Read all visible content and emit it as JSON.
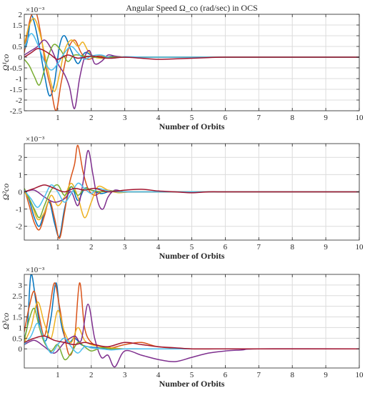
{
  "chart_data": [
    {
      "type": "line",
      "title": "Angular Speed Ω_co (rad/sec) in OCS",
      "xlabel": "Number of Orbits",
      "ylabel": "Ω¹co",
      "y_exponent": "×10⁻³",
      "xlim": [
        0,
        10
      ],
      "ylim": [
        -2.5,
        2.0
      ],
      "xticks": [
        "1",
        "2",
        "3",
        "4",
        "5",
        "6",
        "7",
        "8",
        "9",
        "10"
      ],
      "yticks": [
        "-2.5",
        "-2",
        "-1.5",
        "-1",
        "-0.5",
        "0",
        "0.5",
        "1",
        "1.5",
        "2"
      ],
      "grid": true,
      "series": [
        {
          "color": "#0072BD",
          "x": [
            0,
            0.1,
            0.2,
            0.3,
            0.45,
            0.6,
            0.75,
            0.9,
            1.05,
            1.2,
            1.4,
            1.6,
            1.8,
            2.0,
            2.3,
            2.6,
            3.0,
            3.5,
            4,
            5,
            6,
            10
          ],
          "values": [
            0.3,
            0.8,
            1.9,
            1.6,
            0.5,
            -0.8,
            -1.8,
            -1.2,
            0.5,
            1.0,
            0.3,
            -0.3,
            0.2,
            0.1,
            -0.05,
            0.03,
            0,
            0,
            0,
            0,
            0,
            0
          ]
        },
        {
          "color": "#D95319",
          "x": [
            0,
            0.1,
            0.2,
            0.35,
            0.5,
            0.65,
            0.8,
            0.95,
            1.1,
            1.3,
            1.5,
            1.7,
            1.9,
            2.2,
            2.5,
            3.0,
            3.5,
            4,
            5,
            6,
            10
          ],
          "values": [
            0.2,
            1.2,
            1.9,
            2.1,
            1.0,
            -0.5,
            -1.5,
            -2.5,
            -1.2,
            0.3,
            0.8,
            0.2,
            -0.1,
            0.05,
            0,
            0,
            0,
            0,
            0,
            0,
            0
          ]
        },
        {
          "color": "#EDB120",
          "x": [
            0,
            0.15,
            0.3,
            0.45,
            0.6,
            0.75,
            0.9,
            1.05,
            1.2,
            1.4,
            1.6,
            1.75,
            1.9,
            2.1,
            2.4,
            2.8,
            3.2,
            4,
            5,
            6,
            10
          ],
          "values": [
            0.6,
            1.5,
            1.8,
            1.2,
            0.2,
            -0.9,
            -1.6,
            -0.8,
            0.3,
            0.8,
            0.5,
            0.7,
            0.3,
            0.0,
            -0.05,
            0.02,
            0,
            0,
            0,
            0,
            0
          ]
        },
        {
          "color": "#7E2F8E",
          "x": [
            0,
            0.2,
            0.4,
            0.6,
            0.8,
            1.0,
            1.2,
            1.35,
            1.5,
            1.65,
            1.8,
            1.95,
            2.1,
            2.3,
            2.5,
            2.7,
            3.0,
            3.5,
            4,
            5,
            6,
            10
          ],
          "values": [
            0.1,
            0.3,
            0.5,
            0.8,
            0.4,
            -0.3,
            -0.8,
            -1.4,
            -2.4,
            -1.0,
            0.0,
            0.3,
            -0.3,
            -0.2,
            0.1,
            0.05,
            0,
            0,
            0,
            0,
            0,
            0
          ]
        },
        {
          "color": "#77AC30",
          "x": [
            0,
            0.15,
            0.3,
            0.45,
            0.6,
            0.75,
            0.9,
            1.1,
            1.3,
            1.5,
            1.8,
            2.1,
            2.5,
            3.0,
            4,
            5,
            6,
            10
          ],
          "values": [
            -0.1,
            -0.4,
            -0.9,
            -1.3,
            -0.6,
            0.2,
            0.6,
            0.3,
            -0.2,
            0.1,
            0.05,
            0,
            0,
            0,
            0,
            0,
            0,
            0
          ]
        },
        {
          "color": "#4DBEEE",
          "x": [
            0,
            0.2,
            0.4,
            0.6,
            0.8,
            1.0,
            1.2,
            1.4,
            1.6,
            1.8,
            2.0,
            2.3,
            2.6,
            3.0,
            3.5,
            4,
            5,
            6,
            10
          ],
          "values": [
            0.4,
            1.1,
            0.6,
            -0.2,
            -0.6,
            -0.3,
            0.2,
            0.5,
            0.2,
            -0.1,
            0.05,
            0.1,
            -0.05,
            0.02,
            0,
            0,
            0,
            0,
            0
          ]
        },
        {
          "color": "#A2142F",
          "x": [
            0,
            0.2,
            0.4,
            0.6,
            0.8,
            1.0,
            1.3,
            1.6,
            2.0,
            2.5,
            3.0,
            3.5,
            4.0,
            4.5,
            5.0,
            5.5,
            6.0,
            7,
            10
          ],
          "values": [
            0,
            0.2,
            0.4,
            0.3,
            0.1,
            -0.1,
            0.1,
            -0.05,
            0.05,
            -0.05,
            0.0,
            -0.05,
            -0.1,
            -0.08,
            -0.05,
            -0.02,
            0,
            0,
            0
          ]
        }
      ]
    },
    {
      "type": "line",
      "xlabel": "Number of Orbits",
      "ylabel": "Ω²co",
      "y_exponent": "×10⁻³",
      "xlim": [
        0,
        10
      ],
      "ylim": [
        -2.8,
        2.8
      ],
      "xticks": [
        "1",
        "2",
        "3",
        "4",
        "5",
        "6",
        "7",
        "8",
        "9",
        "10"
      ],
      "yticks": [
        "-2",
        "-1",
        "0",
        "1",
        "2"
      ],
      "grid": true,
      "series": [
        {
          "color": "#0072BD",
          "x": [
            0,
            0.15,
            0.3,
            0.45,
            0.6,
            0.75,
            0.9,
            1.05,
            1.2,
            1.4,
            1.6,
            1.8,
            2.0,
            2.3,
            2.6,
            3.0,
            3.5,
            4,
            5,
            6,
            10
          ],
          "values": [
            0.1,
            -0.5,
            -1.5,
            -2.0,
            -1.2,
            -0.6,
            -1.8,
            -2.6,
            -1.0,
            0.3,
            -0.5,
            0.2,
            0.1,
            -0.1,
            0.05,
            0,
            0,
            0,
            0,
            0,
            0
          ]
        },
        {
          "color": "#D95319",
          "x": [
            0,
            0.15,
            0.3,
            0.45,
            0.6,
            0.75,
            0.9,
            1.05,
            1.2,
            1.35,
            1.5,
            1.6,
            1.75,
            1.9,
            2.1,
            2.4,
            2.8,
            3.2,
            4,
            5,
            6,
            10
          ],
          "values": [
            0.2,
            -0.8,
            -1.8,
            -2.2,
            -1.4,
            -0.5,
            -1.5,
            -2.7,
            -1.2,
            0.5,
            1.6,
            2.7,
            1.2,
            0.2,
            -0.2,
            0.1,
            0,
            0,
            0,
            0,
            0,
            0
          ]
        },
        {
          "color": "#EDB120",
          "x": [
            0,
            0.2,
            0.4,
            0.6,
            0.8,
            1.0,
            1.2,
            1.4,
            1.6,
            1.8,
            2.0,
            2.2,
            2.5,
            2.8,
            3.2,
            4,
            5,
            6,
            10
          ],
          "values": [
            0.0,
            -0.6,
            -1.6,
            -1.2,
            -0.2,
            -0.8,
            -0.3,
            0.5,
            -0.3,
            -1.5,
            -0.6,
            0.3,
            0.1,
            -0.05,
            0,
            0,
            0,
            0,
            0
          ]
        },
        {
          "color": "#7E2F8E",
          "x": [
            0,
            0.3,
            0.6,
            0.9,
            1.2,
            1.4,
            1.6,
            1.75,
            1.9,
            2.05,
            2.2,
            2.35,
            2.5,
            2.7,
            3.0,
            3.5,
            4,
            5,
            6,
            10
          ],
          "values": [
            0.0,
            0.1,
            -0.3,
            -0.6,
            -0.4,
            0.0,
            -0.8,
            0.5,
            2.4,
            1.0,
            -0.6,
            -1.0,
            -0.3,
            0.1,
            0,
            0,
            0,
            0,
            0,
            0
          ]
        },
        {
          "color": "#77AC30",
          "x": [
            0,
            0.15,
            0.3,
            0.45,
            0.6,
            0.8,
            1.0,
            1.2,
            1.4,
            1.6,
            1.8,
            2.0,
            2.3,
            2.6,
            3.0,
            3.5,
            4,
            5,
            6,
            10
          ],
          "values": [
            0.2,
            -0.4,
            -1.0,
            -1.5,
            -0.8,
            0.1,
            0.4,
            -0.2,
            0.3,
            -0.2,
            0.2,
            0.1,
            0.0,
            0.05,
            0,
            0,
            0,
            0,
            0,
            0
          ]
        },
        {
          "color": "#4DBEEE",
          "x": [
            0,
            0.2,
            0.4,
            0.6,
            0.8,
            1.0,
            1.2,
            1.4,
            1.6,
            1.8,
            2.0,
            2.2,
            2.5,
            2.8,
            3.2,
            4,
            5,
            6,
            10
          ],
          "values": [
            0.1,
            -0.4,
            -0.9,
            -0.3,
            0.4,
            0.0,
            -0.6,
            -0.1,
            0.5,
            0.2,
            -0.1,
            0.2,
            0.05,
            0.0,
            0,
            0,
            0,
            0,
            0
          ]
        },
        {
          "color": "#A2142F",
          "x": [
            0,
            0.3,
            0.6,
            0.9,
            1.2,
            1.5,
            1.8,
            2.1,
            2.5,
            3.0,
            3.5,
            4.0,
            4.5,
            5.0,
            5.5,
            6.0,
            7,
            10
          ],
          "values": [
            0,
            0.2,
            0.4,
            0.2,
            0.0,
            0.2,
            0.1,
            0.2,
            0.0,
            0.1,
            0.15,
            0.05,
            0.0,
            -0.05,
            0,
            0,
            0,
            0
          ]
        }
      ]
    },
    {
      "type": "line",
      "xlabel": "Number of Orbits",
      "ylabel": "Ω³co",
      "y_exponent": "×10⁻³",
      "xlim": [
        0,
        10
      ],
      "ylim": [
        -0.9,
        3.5
      ],
      "xticks": [
        "1",
        "2",
        "3",
        "4",
        "5",
        "6",
        "7",
        "8",
        "9",
        "10"
      ],
      "yticks": [
        "0",
        "0.5",
        "1",
        "1.5",
        "2",
        "2.5",
        "3"
      ],
      "grid": true,
      "series": [
        {
          "color": "#0072BD",
          "x": [
            0,
            0.1,
            0.2,
            0.35,
            0.5,
            0.65,
            0.8,
            0.95,
            1.1,
            1.3,
            1.5,
            1.7,
            1.9,
            2.2,
            2.6,
            3.0,
            3.5,
            4,
            5,
            6,
            10
          ],
          "values": [
            0.5,
            1.2,
            3.5,
            2.2,
            0.8,
            0.4,
            1.5,
            3.1,
            1.2,
            0.3,
            0.5,
            0.2,
            0.1,
            0.05,
            0.0,
            0,
            0,
            0,
            0,
            0,
            0
          ]
        },
        {
          "color": "#D95319",
          "x": [
            0,
            0.15,
            0.3,
            0.45,
            0.6,
            0.75,
            0.9,
            1.05,
            1.2,
            1.35,
            1.5,
            1.65,
            1.8,
            2.0,
            2.3,
            2.6,
            3.0,
            3.5,
            4,
            5,
            6,
            7,
            10
          ],
          "values": [
            0.8,
            2.0,
            2.7,
            1.5,
            0.6,
            1.8,
            3.1,
            2.0,
            0.6,
            -0.3,
            0.4,
            3.1,
            1.0,
            0.3,
            0.1,
            0.05,
            0.2,
            0.3,
            0.1,
            0.0,
            0,
            0,
            0
          ]
        },
        {
          "color": "#EDB120",
          "x": [
            0,
            0.2,
            0.4,
            0.6,
            0.8,
            1.0,
            1.2,
            1.4,
            1.6,
            1.8,
            2.0,
            2.3,
            2.6,
            3.0,
            3.5,
            4,
            5,
            6,
            10
          ],
          "values": [
            0.3,
            1.0,
            2.2,
            1.2,
            0.5,
            1.8,
            0.8,
            0.3,
            1.0,
            0.4,
            0.2,
            0.1,
            0.05,
            0.0,
            0,
            0,
            0,
            0,
            0
          ]
        },
        {
          "color": "#7E2F8E",
          "x": [
            0,
            0.3,
            0.6,
            0.9,
            1.2,
            1.5,
            1.7,
            1.9,
            2.1,
            2.3,
            2.5,
            2.7,
            3.0,
            3.5,
            4.0,
            4.5,
            5.0,
            5.5,
            6.0,
            6.5,
            7,
            10
          ],
          "values": [
            0.2,
            0.4,
            0.1,
            -0.2,
            0.3,
            0.6,
            0.4,
            2.1,
            0.5,
            -0.4,
            -0.3,
            -0.85,
            -0.1,
            -0.3,
            -0.5,
            -0.6,
            -0.4,
            -0.2,
            -0.1,
            -0.05,
            0,
            0
          ]
        },
        {
          "color": "#77AC30",
          "x": [
            0,
            0.15,
            0.3,
            0.45,
            0.6,
            0.8,
            1.0,
            1.2,
            1.4,
            1.6,
            1.8,
            2.0,
            2.3,
            2.6,
            3.0,
            3.5,
            4,
            5,
            6,
            10
          ],
          "values": [
            0.4,
            1.4,
            1.9,
            1.0,
            0.3,
            -0.1,
            0.2,
            -0.5,
            -0.2,
            0.3,
            0.1,
            -0.1,
            0.05,
            0.0,
            0,
            0,
            0,
            0,
            0,
            0
          ]
        },
        {
          "color": "#4DBEEE",
          "x": [
            0,
            0.2,
            0.4,
            0.6,
            0.8,
            1.0,
            1.2,
            1.4,
            1.6,
            1.8,
            2.0,
            2.3,
            2.6,
            3.0,
            3.5,
            4,
            5,
            6,
            10
          ],
          "values": [
            0.2,
            0.6,
            1.2,
            0.4,
            -0.2,
            0.2,
            0.5,
            0.1,
            -0.2,
            0.1,
            0.05,
            0.0,
            -0.05,
            0,
            0,
            0,
            0,
            0,
            0
          ]
        },
        {
          "color": "#A2142F",
          "x": [
            0,
            0.3,
            0.6,
            0.9,
            1.2,
            1.5,
            1.8,
            2.1,
            2.5,
            3.0,
            3.5,
            4.0,
            4.5,
            5.0,
            5.5,
            6.0,
            7,
            10
          ],
          "values": [
            0.3,
            0.5,
            0.6,
            0.4,
            0.3,
            0.2,
            0.3,
            0.2,
            0.1,
            0.3,
            0.2,
            0.1,
            0.05,
            0.0,
            0,
            0,
            0,
            0
          ]
        }
      ]
    }
  ]
}
